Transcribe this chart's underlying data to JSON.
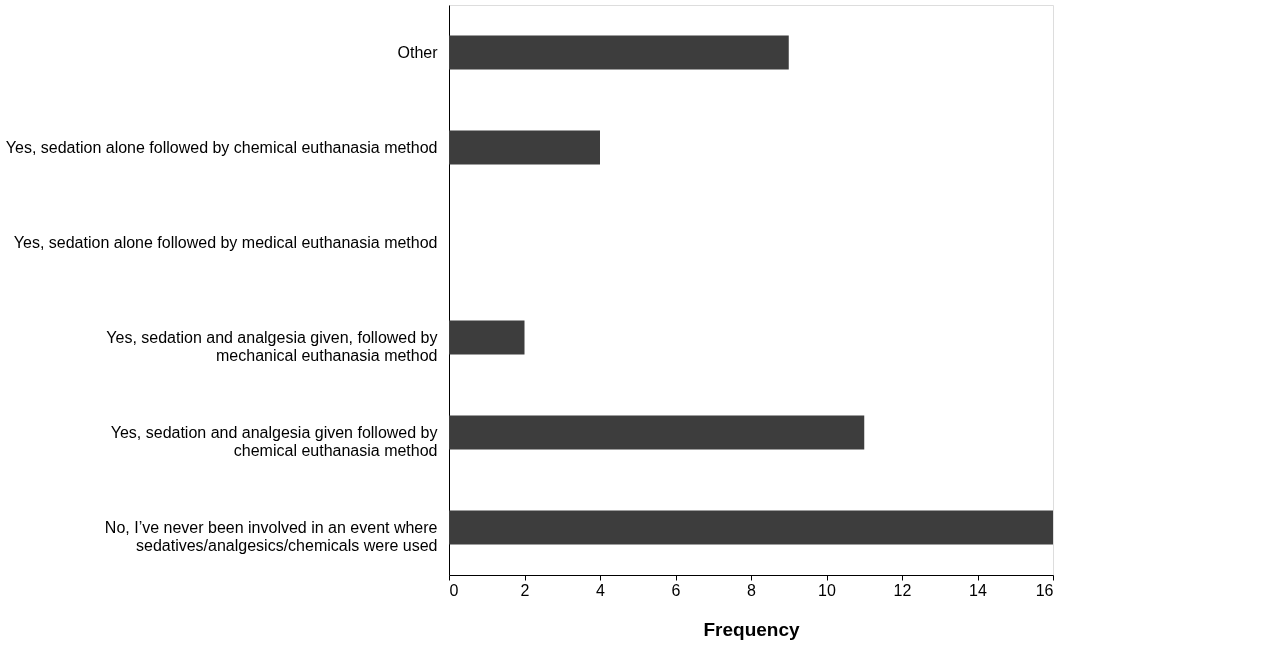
{
  "chart_data": {
    "type": "bar",
    "orientation": "horizontal",
    "xlabel": "Frequency",
    "categories": [
      "Other",
      "Yes, sedation alone followed by chemical euthanasia method",
      "Yes, sedation alone followed by medical euthanasia method",
      "Yes, sedation and analgesia given, followed by\nmechanical euthanasia method",
      "Yes, sedation and analgesia given followed by\nchemical euthanasia method",
      "No, I’ve never been involved in an event where\nsedatives/analgesics/chemicals were used"
    ],
    "values": [
      9,
      4,
      0,
      2,
      11,
      16
    ],
    "color": "#3d3d3d",
    "xlim": [
      0,
      16
    ],
    "xticks": [
      0,
      2,
      4,
      6,
      8,
      10,
      12,
      14,
      16
    ],
    "grid": false,
    "legend": false
  }
}
